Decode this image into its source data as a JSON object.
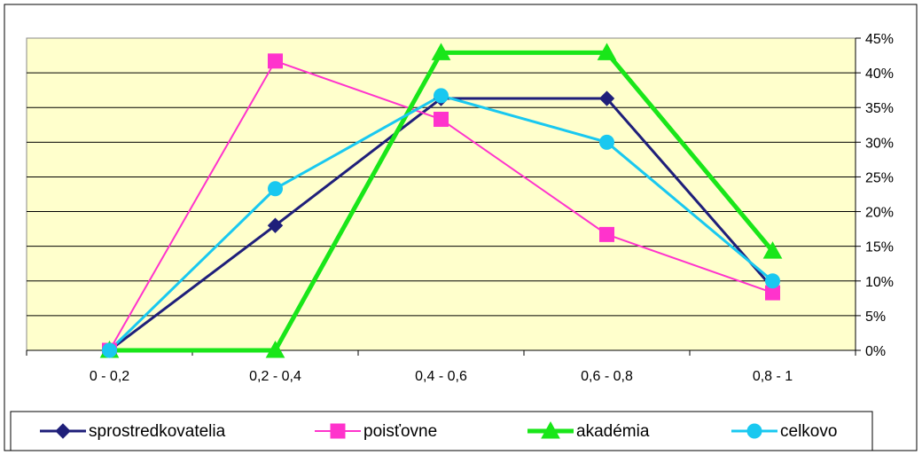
{
  "chart_data": {
    "type": "line",
    "categories": [
      "0 - 0,2",
      "0,2 - 0,4",
      "0,4 - 0,6",
      "0,6 - 0,8",
      "0,8 - 1"
    ],
    "ylim": [
      0,
      45
    ],
    "y_ticks": [
      "0%",
      "5%",
      "10%",
      "15%",
      "20%",
      "25%",
      "30%",
      "35%",
      "40%",
      "45%"
    ],
    "y_axis_side": "right",
    "grid": true,
    "legend_position": "bottom",
    "plot_background": "#FFFFCC",
    "series": [
      {
        "name": "sprostredkovatelia",
        "values": [
          0,
          18,
          36.3,
          36.3,
          9
        ],
        "color": "#1F1F7A",
        "marker": "diamond"
      },
      {
        "name": "poisťovne",
        "values": [
          0,
          41.7,
          33.3,
          16.7,
          8.3
        ],
        "color": "#FF33CC",
        "marker": "square"
      },
      {
        "name": "akadémia",
        "values": [
          0,
          0,
          42.9,
          42.9,
          14.3
        ],
        "color": "#19E619",
        "marker": "triangle"
      },
      {
        "name": "celkovo",
        "values": [
          0,
          23.3,
          36.7,
          30,
          10
        ],
        "color": "#19C8F0",
        "marker": "circle"
      }
    ]
  }
}
